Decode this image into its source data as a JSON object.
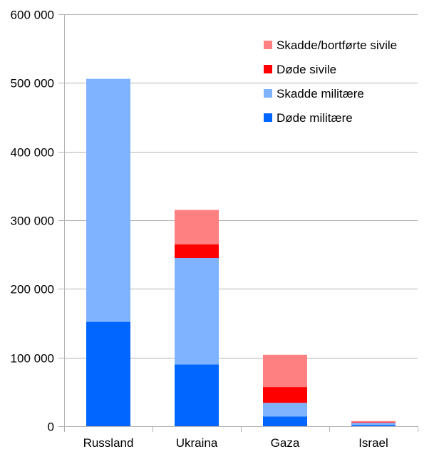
{
  "chart_data": {
    "type": "bar",
    "stacked": true,
    "categories": [
      "Russland",
      "Ukraina",
      "Gaza",
      "Israel"
    ],
    "series": [
      {
        "name": "Døde militære",
        "color": "#0066ff",
        "values": [
          152000,
          90000,
          14000,
          1700
        ]
      },
      {
        "name": "Skadde militære",
        "color": "#80b3ff",
        "values": [
          354000,
          155000,
          20000,
          3300
        ]
      },
      {
        "name": "Døde sivile",
        "color": "#ff0000",
        "values": [
          0,
          20000,
          23000,
          800
        ]
      },
      {
        "name": "Skadde/bortførte sivile",
        "color": "#ff8080",
        "values": [
          0,
          50000,
          47000,
          1700
        ]
      }
    ],
    "ylim": [
      0,
      600000
    ],
    "yticks": [
      0,
      100000,
      200000,
      300000,
      400000,
      500000,
      600000
    ],
    "ytick_labels": [
      "0",
      "100 000",
      "200 000",
      "300 000",
      "400 000",
      "500 000",
      "600 000"
    ],
    "legend_order": [
      "Skadde/bortførte sivile",
      "Døde sivile",
      "Skadde militære",
      "Døde militære"
    ],
    "legend_position": "top-right",
    "grid": true,
    "gridline_color": "#b3b3b3",
    "title": "",
    "xlabel": "",
    "ylabel": ""
  }
}
